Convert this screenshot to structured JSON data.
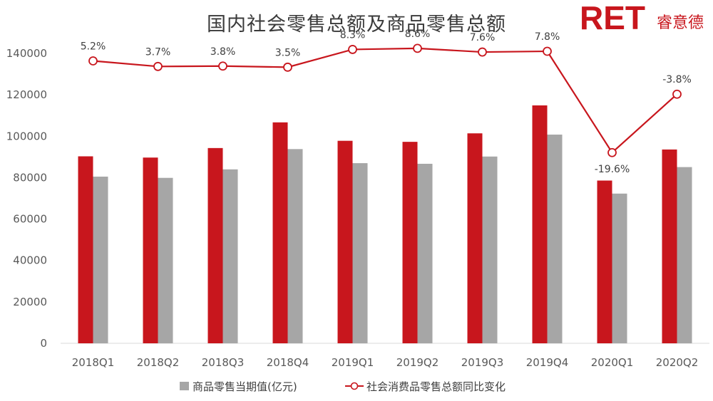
{
  "title": "国内社会零售总额及商品零售总额",
  "logo": {
    "mark": "RET",
    "name": "睿意德"
  },
  "colors": {
    "bar_total": "#c8161d",
    "bar_goods": "#a6a6a6",
    "line": "#c8161d",
    "axis": "#d9d9d9"
  },
  "chart_data": {
    "type": "bar",
    "title": "国内社会零售总额及商品零售总额",
    "categories": [
      "2018Q1",
      "2018Q2",
      "2018Q3",
      "2018Q4",
      "2019Q1",
      "2019Q2",
      "2019Q3",
      "2019Q4",
      "2020Q1",
      "2020Q2"
    ],
    "ylim": [
      0,
      140000
    ],
    "yticks": [
      "0",
      "20000",
      "40000",
      "60000",
      "80000",
      "100000",
      "120000",
      "140000"
    ],
    "series": [
      {
        "values": [
          90300,
          89700,
          94300,
          106700,
          97800,
          97300,
          101400,
          114900,
          78600,
          93600
        ]
      },
      {
        "name": "商品零售当期值(亿元)",
        "values": [
          80500,
          79900,
          84000,
          93800,
          87000,
          86700,
          90200,
          100800,
          72300,
          85100
        ]
      },
      {
        "name": "社会消费品零售总额同比变化",
        "type": "line",
        "values": [
          5.2,
          3.7,
          3.8,
          3.5,
          8.3,
          8.6,
          7.6,
          7.8,
          -19.6,
          -3.8
        ],
        "labels": [
          "5.2%",
          "3.7%",
          "3.8%",
          "3.5%",
          "8.3%",
          "8.6%",
          "7.6%",
          "7.8%",
          "-19.6%",
          "-3.8%"
        ]
      }
    ],
    "legend": "bottom",
    "grid": false
  }
}
